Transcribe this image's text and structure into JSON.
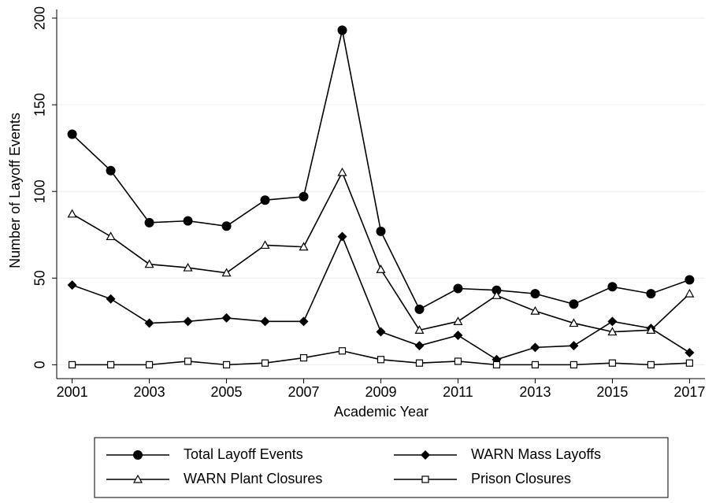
{
  "chart_data": {
    "type": "line",
    "y_label": "Number of Layoff Events",
    "x_label": "Academic Year",
    "x": [
      2001,
      2002,
      2003,
      2004,
      2005,
      2006,
      2007,
      2008,
      2009,
      2010,
      2011,
      2012,
      2013,
      2014,
      2015,
      2016,
      2017
    ],
    "series": [
      {
        "name": "Total Layoff Events",
        "color": "#000000",
        "marker": "circle",
        "values": [
          133,
          112,
          82,
          83,
          80,
          95,
          97,
          193,
          77,
          32,
          44,
          43,
          41,
          35,
          45,
          41,
          49
        ]
      },
      {
        "name": "WARN Mass Layoffs",
        "color": "#000000",
        "marker": "diamond",
        "values": [
          46,
          38,
          24,
          25,
          27,
          25,
          25,
          74,
          19,
          11,
          17,
          3,
          10,
          11,
          25,
          21,
          7
        ]
      },
      {
        "name": "WARN Plant Closures",
        "color": "#000000",
        "marker": "triangle",
        "values": [
          87,
          74,
          58,
          56,
          53,
          69,
          68,
          111,
          55,
          20,
          25,
          40,
          31,
          24,
          19,
          20,
          41
        ]
      },
      {
        "name": "Prison Closures",
        "color": "#000000",
        "marker": "square",
        "values": [
          0,
          0,
          0,
          2,
          0,
          1,
          4,
          8,
          3,
          1,
          2,
          0,
          0,
          0,
          1,
          0,
          1
        ]
      }
    ],
    "xlim": [
      2000.6,
      2017.4
    ],
    "ylim": [
      -8,
      205
    ],
    "xticks": [
      2001,
      2003,
      2005,
      2007,
      2009,
      2011,
      2013,
      2015,
      2017
    ],
    "yticks": [
      0,
      50,
      100,
      150,
      200
    ],
    "grid": true,
    "legend_position": "bottom"
  }
}
